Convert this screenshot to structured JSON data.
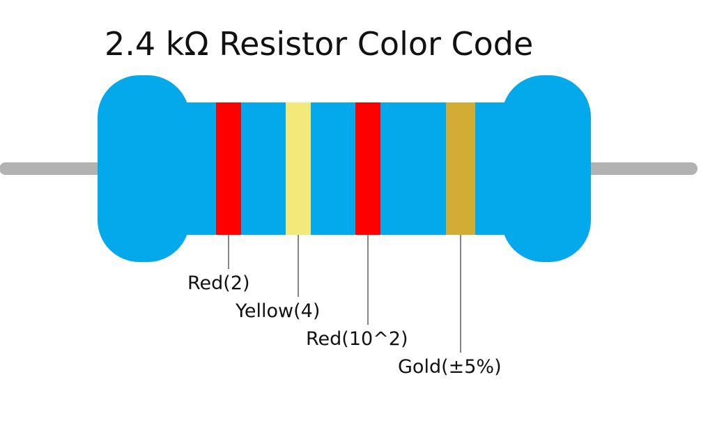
{
  "title": "2.4 kΩ Resistor Color Code",
  "colors": {
    "body": "#03a9eb",
    "lead": "#b2b2b2",
    "leader_line": "#333333"
  },
  "bands": [
    {
      "label": "Red(2)",
      "color": "#ff0000"
    },
    {
      "label": "Yellow(4)",
      "color": "#f3e87a"
    },
    {
      "label": "Red(10^2)",
      "color": "#ff0000"
    },
    {
      "label": "Gold(±5%)",
      "color": "#d3ac36"
    }
  ]
}
